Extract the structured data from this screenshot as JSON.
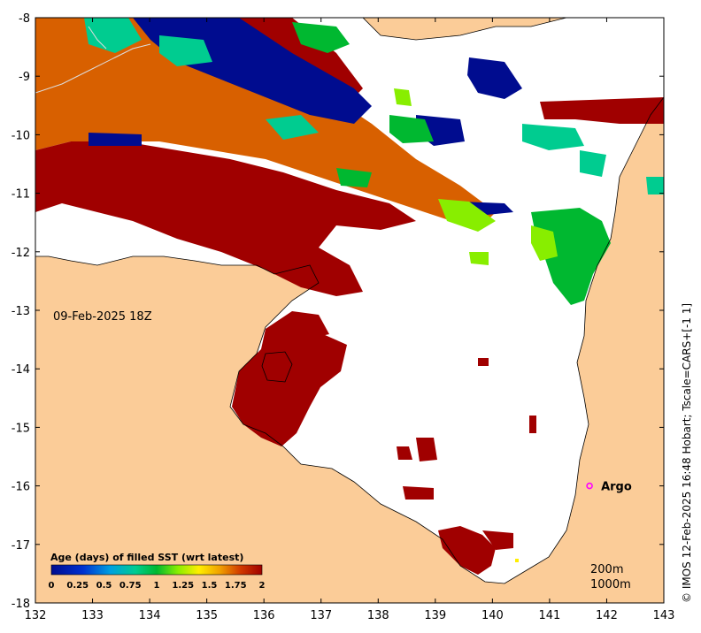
{
  "map": {
    "date_label": "09-Feb-2025 18Z",
    "credit": "© IMOS 12-Feb-2025 16:48 Hobart; Tscale=CARS+[-1 1]",
    "x_ticks": [
      "132",
      "133",
      "134",
      "135",
      "136",
      "137",
      "138",
      "139",
      "140",
      "141",
      "142",
      "143"
    ],
    "y_ticks": [
      "-8",
      "-9",
      "-10",
      "-11",
      "-12",
      "-13",
      "-14",
      "-15",
      "-16",
      "-17",
      "-18"
    ],
    "lon_range": [
      132,
      143
    ],
    "lat_range": [
      -18,
      -8
    ],
    "colors": {
      "land": "#fbcc98",
      "sea_no_data": "#ffffff",
      "age_0": "#000c8f",
      "age_0_5": "#00a0e0",
      "age_0_75": "#00cc90",
      "age_1": "#00b830",
      "age_1_25": "#88ee00",
      "age_1_5": "#ffee00",
      "age_1_75": "#e07000",
      "age_2": "#a00000",
      "argo_marker": "#ff00ff"
    },
    "argo": {
      "label": "Argo",
      "lon": 141.7,
      "lat": -16.0
    },
    "contours": [
      "200m",
      "1000m"
    ]
  },
  "colorbar": {
    "title": "Age (days) of filled SST (wrt latest)",
    "ticks": [
      "0",
      "0.25",
      "0.5",
      "0.75",
      "1",
      "1.25",
      "1.5",
      "1.75",
      "2"
    ],
    "range": [
      0,
      2
    ]
  }
}
